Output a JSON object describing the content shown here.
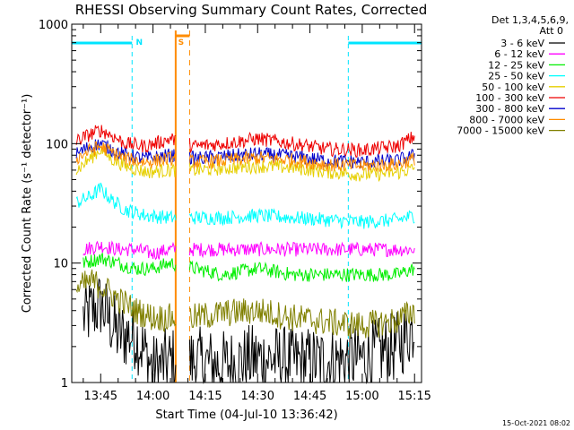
{
  "chart_data": {
    "type": "line",
    "title": "RHESSI Observing Summary Count Rates, Corrected",
    "xlabel": "Start Time (04-Jul-10 13:36:42)",
    "ylabel": "Corrected Count Rate (s⁻¹ detector⁻¹)",
    "y_scale": "log",
    "ylim": [
      1,
      1000
    ],
    "xlim_minutes": [
      "13:36:42",
      "15:17:00"
    ],
    "x_tick_labels": [
      "13:45",
      "14:00",
      "14:15",
      "14:30",
      "14:45",
      "15:00",
      "15:15"
    ],
    "y_tick_labels": [
      "1",
      "10",
      "100",
      "1000"
    ],
    "legend_header": [
      "Det 1,3,4,5,6,9,",
      "Att 0"
    ],
    "legend_position": "right",
    "date_stamp": "15-Oct-2021 08:02",
    "annotations": [
      {
        "text": "N",
        "color": "#00e5ff",
        "time": "13:54"
      },
      {
        "text": "S",
        "color": "#ff8c00",
        "time": "14:06"
      }
    ],
    "spans": {
      "night_1": {
        "start": "13:36:42",
        "end": "13:54:00",
        "color": "#00e5ff"
      },
      "night_2": {
        "start": "14:56:00",
        "end": "15:17:00",
        "color": "#00e5ff"
      },
      "saa": {
        "start": "14:06:30",
        "end": "14:10:30",
        "color": "#ff8c00"
      }
    },
    "gaps": [
      [
        "14:06:30",
        "14:10:30"
      ]
    ],
    "series": [
      {
        "name": "3 - 6 keV",
        "color": "#000000",
        "times": [
          "13:40",
          "13:45",
          "13:50",
          "13:55",
          "14:00",
          "14:05",
          "14:12",
          "14:20",
          "14:30",
          "14:40",
          "14:50",
          "15:00",
          "15:10",
          "15:15"
        ],
        "values": [
          3.5,
          4.5,
          2.5,
          2.5,
          1.3,
          1.5,
          1.5,
          1.4,
          1.6,
          1.5,
          1.5,
          1.6,
          2.0,
          3.0
        ]
      },
      {
        "name": "6 - 12 keV",
        "color": "#ff00ff",
        "times": [
          "13:40",
          "13:45",
          "13:50",
          "13:55",
          "14:00",
          "14:05",
          "14:12",
          "14:20",
          "14:30",
          "14:40",
          "14:50",
          "15:00",
          "15:10",
          "15:15"
        ],
        "values": [
          13,
          14,
          13,
          13,
          12,
          13,
          13,
          13,
          13,
          13,
          13,
          13,
          13,
          13
        ]
      },
      {
        "name": "12 - 25 keV",
        "color": "#00ee00",
        "times": [
          "13:40",
          "13:45",
          "13:50",
          "13:55",
          "14:00",
          "14:05",
          "14:12",
          "14:20",
          "14:30",
          "14:40",
          "14:50",
          "15:00",
          "15:10",
          "15:15"
        ],
        "values": [
          10,
          11,
          10,
          9,
          9,
          10,
          9,
          8,
          9,
          8,
          8,
          8,
          8,
          9
        ]
      },
      {
        "name": "25 - 50 keV",
        "color": "#00ffff",
        "times": [
          "13:38",
          "13:42",
          "13:45",
          "13:48",
          "13:52",
          "13:58",
          "14:05",
          "14:12",
          "14:20",
          "14:30",
          "14:40",
          "14:50",
          "15:00",
          "15:10",
          "15:15"
        ],
        "values": [
          32,
          36,
          42,
          34,
          28,
          25,
          24,
          24,
          24,
          25,
          24,
          23,
          22,
          23,
          25
        ]
      },
      {
        "name": "50 - 100 keV",
        "color": "#e6cf00",
        "times": [
          "13:38",
          "13:42",
          "13:45",
          "13:48",
          "13:52",
          "13:58",
          "14:05",
          "14:12",
          "14:20",
          "14:30",
          "14:40",
          "14:50",
          "15:00",
          "15:10",
          "15:15"
        ],
        "values": [
          60,
          75,
          90,
          75,
          65,
          58,
          60,
          60,
          62,
          65,
          63,
          58,
          55,
          57,
          62
        ]
      },
      {
        "name": "100 - 300 keV",
        "color": "#ee0000",
        "times": [
          "13:38",
          "13:42",
          "13:45",
          "13:48",
          "13:52",
          "13:58",
          "14:05",
          "14:12",
          "14:20",
          "14:30",
          "14:40",
          "14:50",
          "15:00",
          "15:10",
          "15:15"
        ],
        "values": [
          105,
          120,
          130,
          118,
          100,
          95,
          110,
          95,
          100,
          110,
          100,
          90,
          88,
          95,
          115
        ]
      },
      {
        "name": "300 - 800 keV",
        "color": "#0000cc",
        "times": [
          "13:38",
          "13:42",
          "13:45",
          "13:48",
          "13:52",
          "13:58",
          "14:05",
          "14:12",
          "14:20",
          "14:30",
          "14:40",
          "14:50",
          "15:00",
          "15:10",
          "15:15"
        ],
        "values": [
          82,
          95,
          100,
          90,
          80,
          75,
          80,
          75,
          78,
          82,
          78,
          72,
          70,
          72,
          80
        ]
      },
      {
        "name": "800 - 7000 keV",
        "color": "#ff8c00",
        "times": [
          "13:38",
          "13:42",
          "13:45",
          "13:48",
          "13:52",
          "13:58",
          "14:05",
          "14:12",
          "14:20",
          "14:30",
          "14:40",
          "14:50",
          "15:00",
          "15:10",
          "15:15"
        ],
        "values": [
          75,
          88,
          95,
          85,
          75,
          70,
          75,
          70,
          72,
          76,
          73,
          67,
          65,
          67,
          75
        ]
      },
      {
        "name": "7000 - 15000 keV",
        "color": "#808000",
        "times": [
          "13:38",
          "13:42",
          "13:45",
          "13:50",
          "13:55",
          "14:00",
          "14:05",
          "14:12",
          "14:20",
          "14:30",
          "14:40",
          "14:50",
          "15:00",
          "15:10",
          "15:15"
        ],
        "values": [
          6,
          7,
          6.5,
          5,
          4,
          3.5,
          3.5,
          3.5,
          3.8,
          4.0,
          3.5,
          3.2,
          3.0,
          3.3,
          4.0
        ]
      }
    ]
  }
}
